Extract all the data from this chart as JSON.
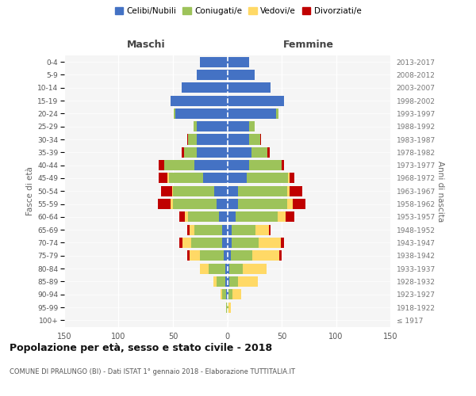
{
  "age_groups": [
    "100+",
    "95-99",
    "90-94",
    "85-89",
    "80-84",
    "75-79",
    "70-74",
    "65-69",
    "60-64",
    "55-59",
    "50-54",
    "45-49",
    "40-44",
    "35-39",
    "30-34",
    "25-29",
    "20-24",
    "15-19",
    "10-14",
    "5-9",
    "0-4"
  ],
  "birth_years": [
    "≤ 1917",
    "1918-1922",
    "1923-1927",
    "1928-1932",
    "1933-1937",
    "1938-1942",
    "1943-1947",
    "1948-1952",
    "1953-1957",
    "1958-1962",
    "1963-1967",
    "1968-1972",
    "1973-1977",
    "1978-1982",
    "1983-1987",
    "1988-1992",
    "1993-1997",
    "1998-2002",
    "2003-2007",
    "2008-2012",
    "2013-2017"
  ],
  "male": {
    "celibi": [
      0,
      0,
      1,
      2,
      2,
      3,
      5,
      5,
      8,
      10,
      12,
      22,
      30,
      28,
      28,
      28,
      48,
      52,
      42,
      28,
      25
    ],
    "coniugati": [
      0,
      1,
      4,
      8,
      15,
      22,
      28,
      25,
      28,
      40,
      38,
      32,
      28,
      12,
      8,
      3,
      1,
      0,
      0,
      0,
      0
    ],
    "vedovi": [
      0,
      0,
      1,
      3,
      8,
      10,
      8,
      5,
      3,
      2,
      1,
      1,
      0,
      0,
      0,
      0,
      0,
      0,
      0,
      0,
      0
    ],
    "divorziati": [
      0,
      0,
      0,
      0,
      0,
      2,
      3,
      2,
      5,
      12,
      10,
      8,
      5,
      2,
      1,
      0,
      0,
      0,
      0,
      0,
      0
    ]
  },
  "female": {
    "nubili": [
      0,
      0,
      1,
      2,
      2,
      3,
      4,
      4,
      8,
      10,
      10,
      18,
      20,
      22,
      20,
      20,
      45,
      52,
      40,
      25,
      20
    ],
    "coniugate": [
      0,
      1,
      4,
      8,
      12,
      20,
      25,
      22,
      38,
      45,
      45,
      38,
      30,
      15,
      10,
      5,
      2,
      0,
      0,
      0,
      0
    ],
    "vedove": [
      0,
      2,
      8,
      18,
      22,
      25,
      20,
      12,
      8,
      5,
      2,
      1,
      0,
      0,
      0,
      0,
      0,
      0,
      0,
      0,
      0
    ],
    "divorziate": [
      0,
      0,
      0,
      0,
      0,
      2,
      3,
      2,
      8,
      12,
      12,
      5,
      2,
      2,
      1,
      0,
      0,
      0,
      0,
      0,
      0
    ]
  },
  "colors": {
    "celibi": "#4472C4",
    "coniugati": "#9DC35A",
    "vedovi": "#FFD966",
    "divorziati": "#C00000"
  },
  "legend_labels": [
    "Celibi/Nubili",
    "Coniugati/e",
    "Vedovi/e",
    "Divorziati/e"
  ],
  "title": "Popolazione per età, sesso e stato civile - 2018",
  "subtitle": "COMUNE DI PRALUNGO (BI) - Dati ISTAT 1° gennaio 2018 - Elaborazione TUTTITALIA.IT",
  "xlabel_left": "Maschi",
  "xlabel_right": "Femmine",
  "ylabel_left": "Fasce di età",
  "ylabel_right": "Anni di nascita",
  "xlim": 150,
  "bg_color": "#f5f5f5"
}
